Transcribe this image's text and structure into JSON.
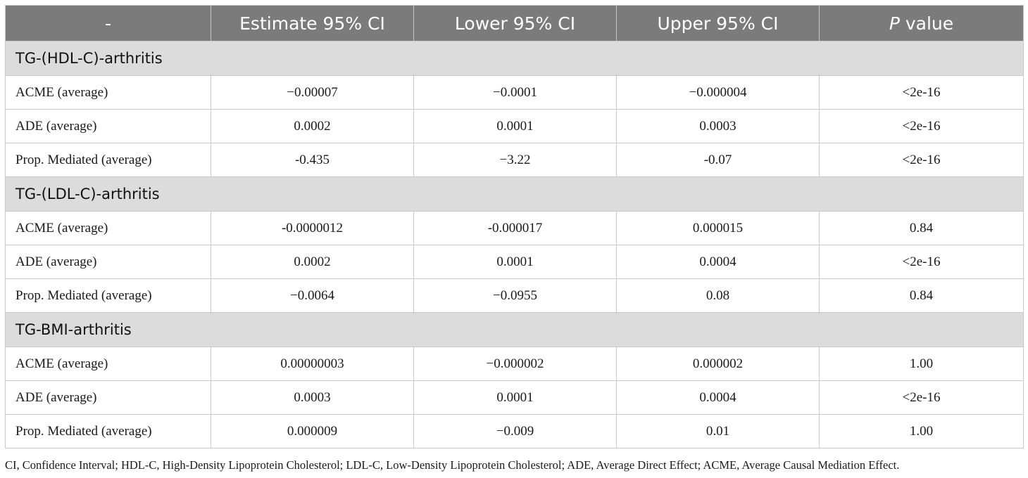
{
  "header": {
    "col0": "-",
    "col1": "Estimate 95% CI",
    "col2": "Lower 95% CI",
    "col3": "Upper 95% CI",
    "col4_italic": "P",
    "col4_rest": " value"
  },
  "sections": [
    {
      "title": "TG-(HDL-C)-arthritis",
      "rows": [
        {
          "label": "ACME (average)",
          "estimate": "−0.00007",
          "lower": "−0.0001",
          "upper": "−0.000004",
          "p": "<2e-16"
        },
        {
          "label": "ADE (average)",
          "estimate": "0.0002",
          "lower": "0.0001",
          "upper": "0.0003",
          "p": "<2e-16"
        },
        {
          "label": "Prop. Mediated (average)",
          "estimate": "-0.435",
          "lower": "−3.22",
          "upper": "-0.07",
          "p": "<2e-16"
        }
      ]
    },
    {
      "title": "TG-(LDL-C)-arthritis",
      "rows": [
        {
          "label": "ACME (average)",
          "estimate": "-0.0000012",
          "lower": "-0.000017",
          "upper": "0.000015",
          "p": "0.84"
        },
        {
          "label": "ADE (average)",
          "estimate": "0.0002",
          "lower": "0.0001",
          "upper": "0.0004",
          "p": "<2e-16"
        },
        {
          "label": "Prop. Mediated (average)",
          "estimate": "−0.0064",
          "lower": "−0.0955",
          "upper": "0.08",
          "p": "0.84"
        }
      ]
    },
    {
      "title": "TG-BMI-arthritis",
      "rows": [
        {
          "label": "ACME (average)",
          "estimate": "0.00000003",
          "lower": "−0.000002",
          "upper": "0.000002",
          "p": "1.00"
        },
        {
          "label": "ADE (average)",
          "estimate": "0.0003",
          "lower": "0.0001",
          "upper": "0.0004",
          "p": "<2e-16"
        },
        {
          "label": "Prop. Mediated (average)",
          "estimate": "0.000009",
          "lower": "−0.009",
          "upper": "0.01",
          "p": "1.00"
        }
      ]
    }
  ],
  "footnote": "CI, Confidence Interval; HDL-C, High-Density Lipoprotein Cholesterol; LDL-C, Low-Density Lipoprotein Cholesterol; ADE, Average Direct Effect; ACME, Average Causal Mediation Effect."
}
